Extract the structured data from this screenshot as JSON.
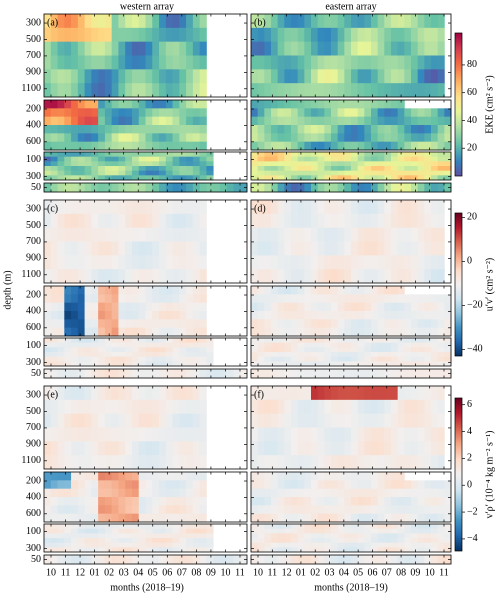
{
  "chart_data": {
    "type": "heatmap",
    "columns": [
      "western array",
      "eastern array"
    ],
    "letters": [
      "(a)",
      "(b)",
      "(c)",
      "(d)",
      "(e)",
      "(f)"
    ],
    "ylabel": "depth (m)",
    "xlabel": "months (2018–19)",
    "months": [
      "10",
      "11",
      "12",
      "01",
      "02",
      "03",
      "04",
      "05",
      "06",
      "07",
      "08",
      "09",
      "10",
      "11"
    ],
    "depth_axes": [
      {
        "lim": [
          190,
          1200
        ],
        "ticks": [
          300,
          500,
          700,
          900,
          1100
        ]
      },
      {
        "lim": [
          90,
          700
        ],
        "ticks": [
          200,
          400,
          600
        ]
      },
      {
        "lim": [
          10,
          340
        ],
        "ticks": [
          100,
          300
        ]
      },
      {
        "lim": [
          30,
          70
        ],
        "ticks": [
          50
        ]
      }
    ],
    "colorbars": [
      {
        "label": "EKE (cm² s⁻²)",
        "colormap": "spectral",
        "lim": [
          0,
          103
        ],
        "ticks": [
          20,
          40,
          60,
          80
        ]
      },
      {
        "label": "u′v′ (cm² s⁻²)",
        "colormap": "rdbu",
        "lim": [
          -43,
          22
        ],
        "ticks": [
          {
            "value": -40,
            "label": "−40"
          },
          {
            "value": -20,
            "label": "−20"
          },
          0,
          20
        ]
      },
      {
        "label": "v′ρ′ (10⁻⁴ kg m⁻² s⁻¹)",
        "colormap": "rdbu",
        "lim": [
          -4.9,
          6.5
        ],
        "ticks": [
          {
            "value": -4,
            "label": "−4"
          },
          {
            "value": -2,
            "label": "−2"
          },
          0,
          2,
          4,
          6
        ]
      }
    ]
  }
}
